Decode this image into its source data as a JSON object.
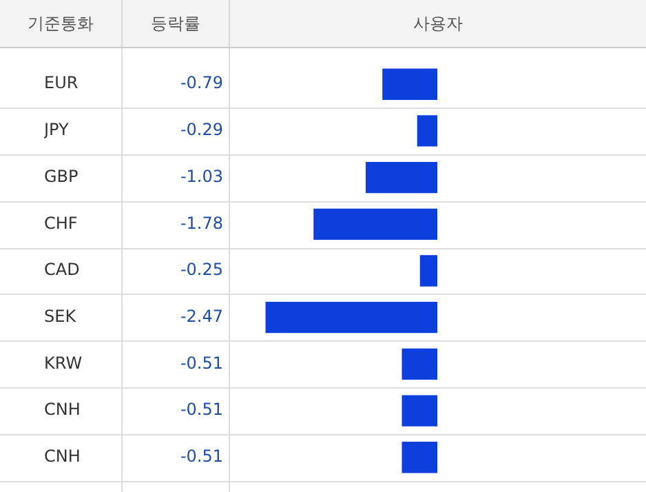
{
  "chart_data": {
    "type": "bar",
    "orientation": "horizontal",
    "annotations": [
      "기준통화",
      "등락률",
      "사용자"
    ],
    "categories": [
      "EUR",
      "JPY",
      "GBP",
      "CHF",
      "CAD",
      "SEK",
      "KRW",
      "CNH",
      "CNH"
    ],
    "values": [
      -0.79,
      -0.29,
      -1.03,
      -1.78,
      -0.25,
      -2.47,
      -0.51,
      -0.51,
      -0.51
    ],
    "color": "#0d3fdc",
    "xlim": [
      -3,
      3
    ],
    "data_labels": true,
    "tick_labels": "y",
    "grid": true
  }
}
